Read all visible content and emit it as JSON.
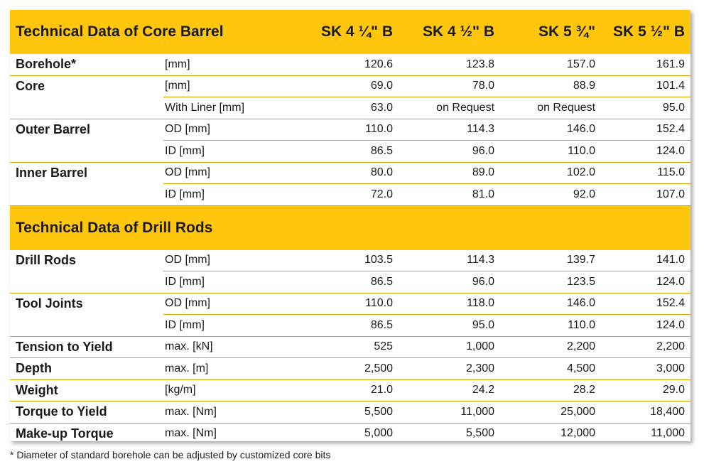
{
  "header1": {
    "title": "Technical Data of Core Barrel",
    "columns": [
      "SK 4 ¼\" B",
      "SK 4 ½\" B",
      "SK 5 ¾\"",
      "SK 5 ½\" B"
    ]
  },
  "core_barrel_rows": [
    {
      "label": "Borehole*",
      "unit": "[mm]",
      "values": [
        "120.6",
        "123.8",
        "157.0",
        "161.9"
      ]
    },
    {
      "label": "Core",
      "unit": "[mm]",
      "values": [
        "69.0",
        "78.0",
        "88.9",
        "101.4"
      ]
    },
    {
      "label": "",
      "unit": "With Liner [mm]",
      "values": [
        "63.0",
        "on Request",
        "on Request",
        "95.0"
      ]
    },
    {
      "label": "Outer Barrel",
      "unit": "OD [mm]",
      "values": [
        "110.0",
        "114.3",
        "146.0",
        "152.4"
      ]
    },
    {
      "label": "",
      "unit": "ID [mm]",
      "values": [
        "86.5",
        "96.0",
        "110.0",
        "124.0"
      ]
    },
    {
      "label": "Inner Barrel",
      "unit": "OD [mm]",
      "values": [
        "80.0",
        "89.0",
        "102.0",
        "115.0"
      ]
    },
    {
      "label": "",
      "unit": "ID [mm]",
      "values": [
        "72.0",
        "81.0",
        "92.0",
        "107.0"
      ]
    }
  ],
  "header2": {
    "title": "Technical Data of Drill Rods"
  },
  "drill_rod_rows": [
    {
      "label": "Drill Rods",
      "unit": "OD [mm]",
      "values": [
        "103.5",
        "114.3",
        "139.7",
        "141.0"
      ]
    },
    {
      "label": "",
      "unit": "ID [mm]",
      "values": [
        "86.5",
        "96.0",
        "123.5",
        "124.0"
      ]
    },
    {
      "label": "Tool Joints",
      "unit": "OD [mm]",
      "values": [
        "110.0",
        "118.0",
        "146.0",
        "152.4"
      ]
    },
    {
      "label": "",
      "unit": "ID [mm]",
      "values": [
        "86.5",
        "95.0",
        "110.0",
        "124.0"
      ]
    },
    {
      "label": "Tension to Yield",
      "unit": "max. [kN]",
      "values": [
        "525",
        "1,000",
        "2,200",
        "2,200"
      ]
    },
    {
      "label": "Depth",
      "unit": "max. [m]",
      "values": [
        "2,500",
        "2,300",
        "4,500",
        "3,000"
      ]
    },
    {
      "label": "Weight",
      "unit": "[kg/m]",
      "values": [
        "21.0",
        "24.2",
        "28.2",
        "29.0"
      ]
    },
    {
      "label": "Torque to Yield",
      "unit": "max. [Nm]",
      "values": [
        "5,500",
        "11,000",
        "25,000",
        "18,400"
      ]
    },
    {
      "label": "Make-up Torque",
      "unit": "max. [Nm]",
      "values": [
        "5,000",
        "5,500",
        "12,000",
        "11,000"
      ]
    }
  ],
  "footnote": "* Diameter of standard borehole can be adjusted by customized core bits",
  "colors": {
    "header_bg": "#ffc60b",
    "rule": "#d9a400"
  }
}
